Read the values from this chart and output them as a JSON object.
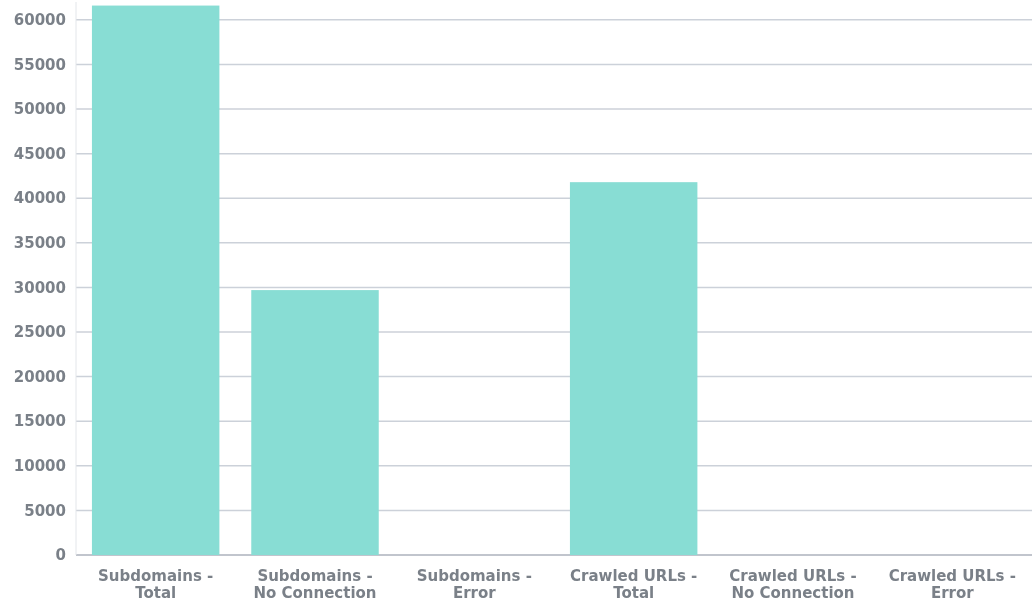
{
  "chart_data": {
    "type": "bar",
    "categories": [
      "Subdomains - Total",
      "Subdomains - No Connection",
      "Subdomains - Error",
      "Crawled URLs - Total",
      "Crawled URLs - No Connection",
      "Crawled URLs - Error"
    ],
    "values": [
      61600,
      29700,
      null,
      41800,
      null,
      null
    ],
    "color": "#88ddd4",
    "ylim": [
      0,
      62000
    ],
    "yticks": [
      0,
      5000,
      10000,
      15000,
      20000,
      25000,
      30000,
      35000,
      40000,
      45000,
      50000,
      55000,
      60000
    ],
    "grid": "y"
  }
}
